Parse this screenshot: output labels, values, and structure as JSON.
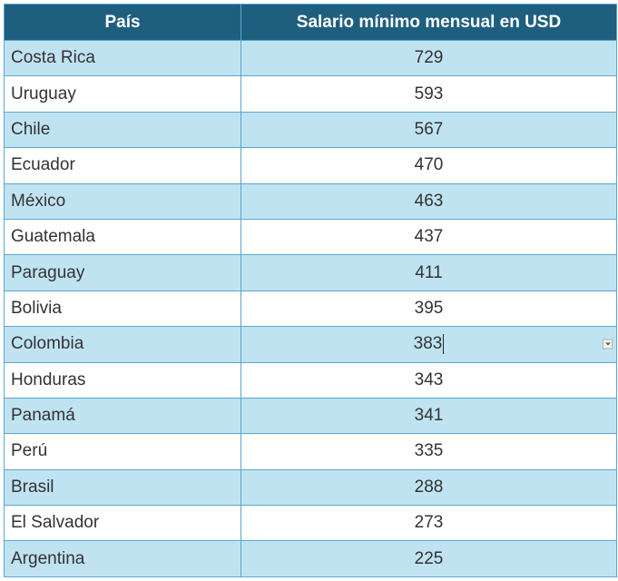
{
  "chart_data": {
    "type": "table",
    "columns": [
      "País",
      "Salario mínimo mensual en USD"
    ],
    "rows": [
      {
        "country": "Costa Rica",
        "value": 729
      },
      {
        "country": "Uruguay",
        "value": 593
      },
      {
        "country": "Chile",
        "value": 567
      },
      {
        "country": "Ecuador",
        "value": 470
      },
      {
        "country": "México",
        "value": 463
      },
      {
        "country": "Guatemala",
        "value": 437
      },
      {
        "country": "Paraguay",
        "value": 411
      },
      {
        "country": "Bolivia",
        "value": 395
      },
      {
        "country": "Colombia",
        "value": 383
      },
      {
        "country": "Honduras",
        "value": 343
      },
      {
        "country": "Panamá",
        "value": 341
      },
      {
        "country": "Perú",
        "value": 335
      },
      {
        "country": "Brasil",
        "value": 288
      },
      {
        "country": "El Salvador",
        "value": 273
      },
      {
        "country": "Argentina",
        "value": 225
      }
    ]
  },
  "editing": {
    "active_row_index": 8,
    "dropdown_icon": "chevron-down-icon"
  },
  "colors": {
    "header_bg": "#1e5f80",
    "header_text": "#ffffff",
    "row_alt_bg": "#c0e3f2",
    "row_bg": "#ffffff",
    "border": "#5aa6cf"
  }
}
